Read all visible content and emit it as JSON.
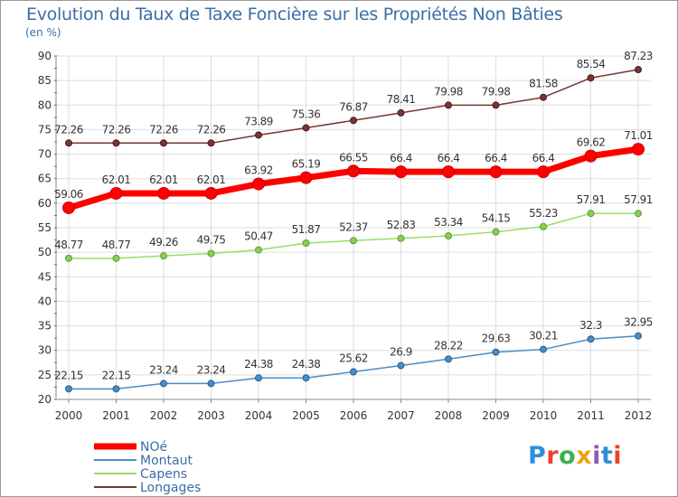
{
  "title": "Evolution du Taux de Taxe Foncière sur les Propriétés Non Bâties",
  "unit_label": "(en %)",
  "logo": {
    "text": "Proxiti",
    "colors": [
      "#2f8fd6",
      "#e8432c",
      "#39b14a",
      "#f0a21c",
      "#8f5bb5",
      "#2f8fd6",
      "#e8432c"
    ]
  },
  "chart_data": {
    "type": "line",
    "title": "Evolution du Taux de Taxe Foncière sur les Propriétés Non Bâties",
    "ylabel": "(en %)",
    "xlabel": "",
    "x": [
      "2000",
      "2001",
      "2002",
      "2003",
      "2004",
      "2005",
      "2006",
      "2007",
      "2008",
      "2009",
      "2010",
      "2011",
      "2012"
    ],
    "ylim": [
      20,
      90
    ],
    "yticks": [
      20,
      25,
      30,
      35,
      40,
      45,
      50,
      55,
      60,
      65,
      70,
      75,
      80,
      85,
      90
    ],
    "grid": true,
    "legend_position": "bottom-left",
    "series": [
      {
        "name": "NOé",
        "color": "#ff0000",
        "values": [
          59.06,
          62.01,
          62.01,
          62.01,
          63.92,
          65.19,
          66.55,
          66.4,
          66.4,
          66.4,
          66.4,
          69.62,
          71.01
        ],
        "labels": [
          "59.06",
          "62.01",
          "62.01",
          "62.01",
          "63.92",
          "65.19",
          "66.55",
          "66.4",
          "66.4",
          "66.4",
          "66.4",
          "69.62",
          "71.01"
        ]
      },
      {
        "name": "Montaut",
        "color": "#4a8cc4",
        "values": [
          22.15,
          22.15,
          23.24,
          23.24,
          24.38,
          24.38,
          25.62,
          26.9,
          28.22,
          29.63,
          30.21,
          32.3,
          32.95
        ],
        "labels": [
          "22.15",
          "22.15",
          "23.24",
          "23.24",
          "24.38",
          "24.38",
          "25.62",
          "26.9",
          "28.22",
          "29.63",
          "30.21",
          "32.3",
          "32.95"
        ]
      },
      {
        "name": "Capens",
        "color": "#99dd66",
        "values": [
          48.77,
          48.77,
          49.26,
          49.75,
          50.47,
          51.87,
          52.37,
          52.83,
          53.34,
          54.15,
          55.23,
          57.91,
          57.91
        ],
        "labels": [
          "48.77",
          "48.77",
          "49.26",
          "49.75",
          "50.47",
          "51.87",
          "52.37",
          "52.83",
          "53.34",
          "54.15",
          "55.23",
          "57.91",
          "57.91"
        ]
      },
      {
        "name": "Longages",
        "color": "#7a3535",
        "values": [
          72.26,
          72.26,
          72.26,
          72.26,
          73.89,
          75.36,
          76.87,
          78.41,
          79.98,
          79.98,
          81.58,
          85.54,
          87.23
        ],
        "labels": [
          "72.26",
          "72.26",
          "72.26",
          "72.26",
          "73.89",
          "75.36",
          "76.87",
          "78.41",
          "79.98",
          "79.98",
          "81.58",
          "85.54",
          "87.23"
        ]
      }
    ]
  }
}
